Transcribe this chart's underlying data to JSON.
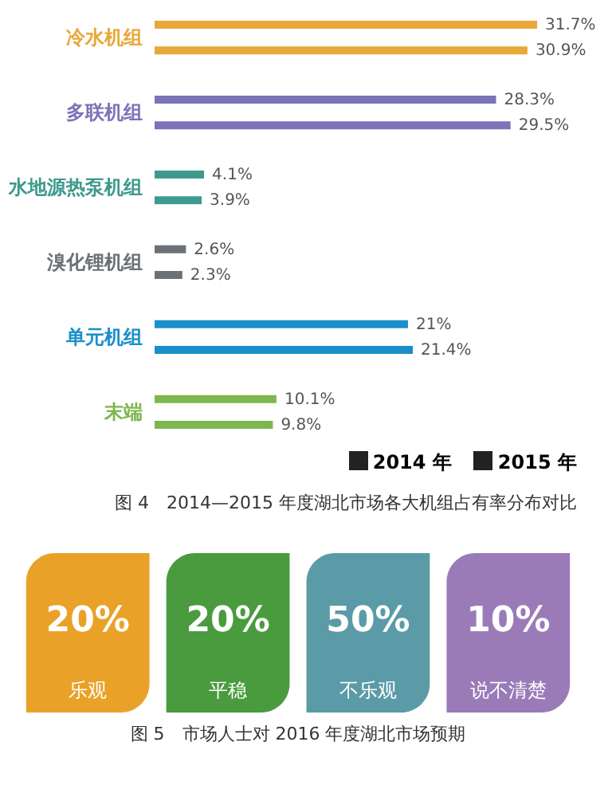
{
  "chart_data": [
    {
      "type": "bar",
      "orientation": "horizontal",
      "title": "图 4　2014—2015 年度湖北市场各大机组占有率分布对比",
      "categories": [
        "冷水机组",
        "多联机组",
        "水地源热泵机组",
        "溴化锂机组",
        "单元机组",
        "末端"
      ],
      "series": [
        {
          "name": "2014 年",
          "colors": [
            "#e8a93a",
            "#7b74b8",
            "#3f9a8e",
            "#6b7176",
            "#1b8fcb",
            "#7fb64e"
          ],
          "values": [
            31.7,
            28.3,
            4.1,
            2.6,
            21,
            10.1
          ],
          "value_labels": [
            "31.7%",
            "28.3%",
            "4.1%",
            "2.6%",
            "21%",
            "10.1%"
          ]
        },
        {
          "name": "2015 年",
          "colors": [
            "#e8a93a",
            "#7b74b8",
            "#3f9a8e",
            "#6b7176",
            "#1b8fcb",
            "#7fb64e"
          ],
          "values": [
            30.9,
            29.5,
            3.9,
            2.3,
            21.4,
            9.8
          ],
          "value_labels": [
            "30.9%",
            "29.5%",
            "3.9%",
            "2.3%",
            "21.4%",
            "9.8%"
          ]
        }
      ],
      "legend": "bottom right"
    },
    {
      "type": "other",
      "title": "图 5　市场人士对 2016 年度湖北市场预期",
      "categories": [
        "乐观",
        "平稳",
        "不乐观",
        "说不清楚"
      ],
      "value_labels": [
        "20%",
        "20%",
        "50%",
        "10%"
      ],
      "colors": [
        "#e9a227",
        "#4a9b3e",
        "#5b9ba8",
        "#9a7bb8"
      ]
    }
  ]
}
